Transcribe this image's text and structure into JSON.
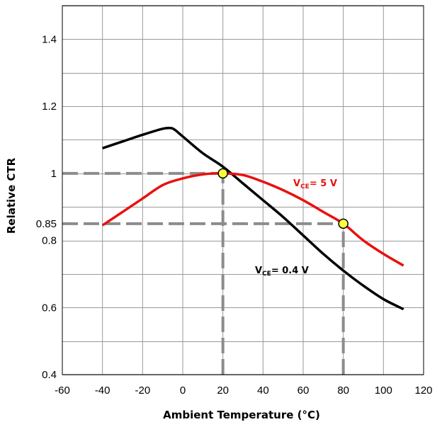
{
  "chart_data": {
    "type": "line",
    "title": "",
    "xlabel": "Ambient Temperature (°C)",
    "ylabel": "Relative CTR",
    "xlim": [
      -60,
      120
    ],
    "ylim": [
      0.4,
      1.5
    ],
    "grid": true,
    "x_ticks": [
      -60,
      -40,
      -20,
      0,
      20,
      40,
      60,
      80,
      100,
      120
    ],
    "x_tick_labels": [
      "-60",
      "-40",
      "-20",
      "0",
      "20",
      "40",
      "60",
      "80",
      "100",
      "120"
    ],
    "y_ticks": [
      0.4,
      0.6,
      0.8,
      0.85,
      1.0,
      1.2,
      1.4
    ],
    "y_tick_labels": [
      "0.4",
      "0.6",
      "0.8",
      "0.85",
      "1",
      "1.2",
      "1.4"
    ],
    "series": [
      {
        "name": "VCE = 0.4 V",
        "label_main": "V",
        "label_sub": "CE",
        "label_rest": "= 0.4 V",
        "color": "#000000",
        "x": [
          -40,
          -30,
          -20,
          -10,
          -6,
          -4,
          0,
          10,
          20,
          30,
          40,
          50,
          60,
          70,
          80,
          90,
          100,
          110
        ],
        "y": [
          1.075,
          1.095,
          1.115,
          1.133,
          1.135,
          1.13,
          1.11,
          1.06,
          1.02,
          0.97,
          0.92,
          0.87,
          0.815,
          0.76,
          0.71,
          0.665,
          0.625,
          0.595
        ]
      },
      {
        "name": "VCE = 5 V",
        "label_main": "V",
        "label_sub": "CE",
        "label_rest": "= 5 V",
        "color": "#e8110f",
        "x": [
          -40,
          -30,
          -20,
          -10,
          0,
          10,
          20,
          30,
          40,
          50,
          60,
          70,
          80,
          90,
          100,
          110
        ],
        "y": [
          0.845,
          0.885,
          0.925,
          0.965,
          0.985,
          0.997,
          1.0,
          0.995,
          0.975,
          0.95,
          0.92,
          0.885,
          0.85,
          0.8,
          0.76,
          0.725
        ]
      }
    ],
    "reference_lines": [
      {
        "axis": "y",
        "value": 1.0,
        "x_from": -60,
        "x_to": 20
      },
      {
        "axis": "x",
        "value": 20,
        "y_from": 0.4,
        "y_to": 1.0
      },
      {
        "axis": "y",
        "value": 0.85,
        "x_from": -60,
        "x_to": 80
      },
      {
        "axis": "x",
        "value": 80,
        "y_from": 0.4,
        "y_to": 0.85
      }
    ],
    "markers": [
      {
        "x": 20,
        "y": 1.0,
        "color": "#ffff3a"
      },
      {
        "x": 80,
        "y": 0.85,
        "color": "#ffff3a"
      }
    ],
    "reference_color": "#8c8c8c",
    "grid_color": "#999999"
  }
}
